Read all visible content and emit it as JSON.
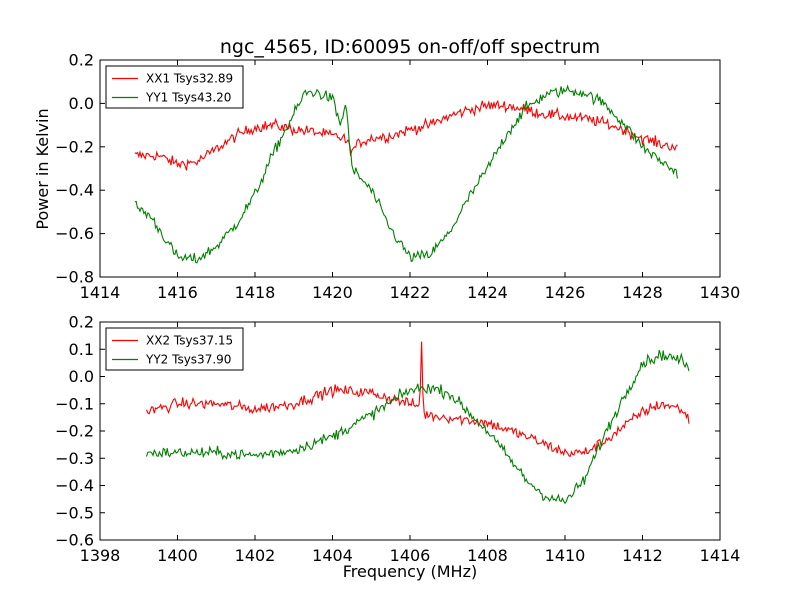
{
  "chart_data": {
    "title": "ngc_4565, ID:60095 on-off/off spectrum",
    "ylabel": "Power in Kelvin",
    "xlabel": "Frequency (MHz)",
    "colors": {
      "XX": "#ff0000",
      "YY": "#008000"
    },
    "panels": [
      {
        "type": "line",
        "xlim": [
          1414,
          1430
        ],
        "ylim": [
          -0.8,
          0.2
        ],
        "xticks": [
          1414,
          1416,
          1418,
          1420,
          1422,
          1424,
          1426,
          1428,
          1430
        ],
        "xtick_labels": [
          "1414",
          "1416",
          "1418",
          "1420",
          "1422",
          "1424",
          "1426",
          "1428",
          "1430"
        ],
        "yticks": [
          -0.8,
          -0.6,
          -0.4,
          -0.2,
          0.0,
          0.2
        ],
        "ytick_labels": [
          "−0.8",
          "−0.6",
          "−0.4",
          "−0.2",
          "0.0",
          "0.2"
        ],
        "legend_position": "top-left",
        "noise": 0.025,
        "series": [
          {
            "name": "XX1 Tsys32.89",
            "color": "#ff0000",
            "points": [
              [
                1414.9,
                -0.24
              ],
              [
                1415.5,
                -0.24
              ],
              [
                1416,
                -0.28
              ],
              [
                1416.5,
                -0.27
              ],
              [
                1417,
                -0.21
              ],
              [
                1417.5,
                -0.15
              ],
              [
                1418,
                -0.11
              ],
              [
                1418.5,
                -0.1
              ],
              [
                1419,
                -0.12
              ],
              [
                1419.5,
                -0.13
              ],
              [
                1420,
                -0.15
              ],
              [
                1420.3,
                -0.16
              ],
              [
                1420.5,
                -0.22
              ],
              [
                1420.7,
                -0.18
              ],
              [
                1421,
                -0.16
              ],
              [
                1421.5,
                -0.15
              ],
              [
                1422,
                -0.12
              ],
              [
                1422.5,
                -0.1
              ],
              [
                1423,
                -0.06
              ],
              [
                1423.5,
                -0.03
              ],
              [
                1424,
                -0.01
              ],
              [
                1424.5,
                -0.01
              ],
              [
                1425,
                -0.03
              ],
              [
                1425.5,
                -0.05
              ],
              [
                1426,
                -0.06
              ],
              [
                1426.5,
                -0.07
              ],
              [
                1427,
                -0.09
              ],
              [
                1427.5,
                -0.12
              ],
              [
                1428,
                -0.16
              ],
              [
                1428.5,
                -0.19
              ],
              [
                1428.9,
                -0.2
              ]
            ]
          },
          {
            "name": "YY1 Tsys43.20",
            "color": "#008000",
            "points": [
              [
                1414.9,
                -0.47
              ],
              [
                1415.3,
                -0.52
              ],
              [
                1415.6,
                -0.6
              ],
              [
                1416,
                -0.71
              ],
              [
                1416.5,
                -0.72
              ],
              [
                1417,
                -0.66
              ],
              [
                1417.5,
                -0.56
              ],
              [
                1418,
                -0.42
              ],
              [
                1418.5,
                -0.22
              ],
              [
                1419,
                -0.05
              ],
              [
                1419.3,
                0.05
              ],
              [
                1419.6,
                0.05
              ],
              [
                1420,
                0.02
              ],
              [
                1420.2,
                -0.1
              ],
              [
                1420.35,
                0.0
              ],
              [
                1420.5,
                -0.3
              ],
              [
                1421,
                -0.4
              ],
              [
                1421.5,
                -0.58
              ],
              [
                1422,
                -0.71
              ],
              [
                1422.5,
                -0.7
              ],
              [
                1423,
                -0.6
              ],
              [
                1423.5,
                -0.44
              ],
              [
                1424,
                -0.3
              ],
              [
                1424.5,
                -0.14
              ],
              [
                1425,
                -0.02
              ],
              [
                1425.5,
                0.04
              ],
              [
                1426,
                0.06
              ],
              [
                1426.5,
                0.05
              ],
              [
                1427,
                0.0
              ],
              [
                1427.5,
                -0.09
              ],
              [
                1428,
                -0.2
              ],
              [
                1428.5,
                -0.27
              ],
              [
                1428.9,
                -0.32
              ]
            ]
          }
        ]
      },
      {
        "type": "line",
        "xlim": [
          1398,
          1414
        ],
        "ylim": [
          -0.6,
          0.2
        ],
        "xticks": [
          1398,
          1400,
          1402,
          1404,
          1406,
          1408,
          1410,
          1412,
          1414
        ],
        "xtick_labels": [
          "1398",
          "1400",
          "1402",
          "1404",
          "1406",
          "1408",
          "1410",
          "1412",
          "1414"
        ],
        "yticks": [
          -0.6,
          -0.5,
          -0.4,
          -0.3,
          -0.2,
          -0.1,
          0.0,
          0.1,
          0.2
        ],
        "ytick_labels": [
          "−0.6",
          "−0.5",
          "−0.4",
          "−0.3",
          "−0.2",
          "−0.1",
          "0.0",
          "0.1",
          "0.2"
        ],
        "legend_position": "top-left",
        "noise": 0.02,
        "series": [
          {
            "name": "XX2 Tsys37.15",
            "color": "#ff0000",
            "points": [
              [
                1399.2,
                -0.13
              ],
              [
                1400,
                -0.1
              ],
              [
                1401,
                -0.1
              ],
              [
                1402,
                -0.12
              ],
              [
                1403,
                -0.1
              ],
              [
                1404,
                -0.05
              ],
              [
                1405,
                -0.06
              ],
              [
                1406,
                -0.1
              ],
              [
                1406.25,
                -0.11
              ],
              [
                1406.3,
                0.12
              ],
              [
                1406.35,
                -0.14
              ],
              [
                1407,
                -0.15
              ],
              [
                1408,
                -0.17
              ],
              [
                1409,
                -0.22
              ],
              [
                1410,
                -0.28
              ],
              [
                1410.5,
                -0.28
              ],
              [
                1411,
                -0.24
              ],
              [
                1412,
                -0.13
              ],
              [
                1412.5,
                -0.1
              ],
              [
                1413,
                -0.12
              ],
              [
                1413.2,
                -0.16
              ]
            ]
          },
          {
            "name": "YY2 Tsys37.90",
            "color": "#008000",
            "points": [
              [
                1399.2,
                -0.28
              ],
              [
                1400,
                -0.28
              ],
              [
                1401,
                -0.28
              ],
              [
                1402,
                -0.29
              ],
              [
                1403,
                -0.27
              ],
              [
                1404,
                -0.22
              ],
              [
                1405,
                -0.14
              ],
              [
                1406,
                -0.05
              ],
              [
                1406.5,
                -0.04
              ],
              [
                1407,
                -0.06
              ],
              [
                1408,
                -0.2
              ],
              [
                1409,
                -0.38
              ],
              [
                1409.5,
                -0.44
              ],
              [
                1410,
                -0.46
              ],
              [
                1410.5,
                -0.38
              ],
              [
                1411,
                -0.22
              ],
              [
                1411.5,
                -0.08
              ],
              [
                1412,
                0.05
              ],
              [
                1412.5,
                0.08
              ],
              [
                1413,
                0.06
              ],
              [
                1413.2,
                0.03
              ]
            ]
          }
        ]
      }
    ]
  }
}
